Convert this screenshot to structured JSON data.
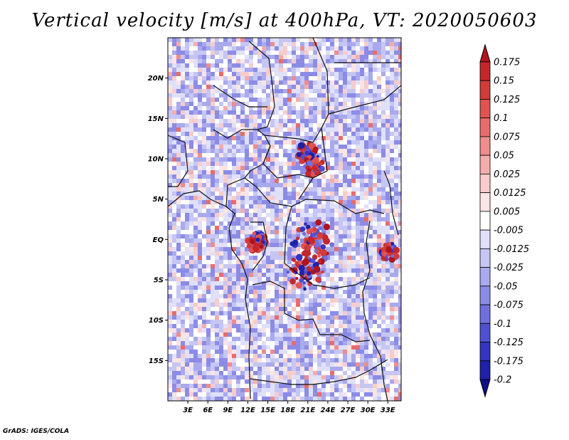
{
  "title": "Vertical velocity [m/s] at 400hPa, VT: 2020050603",
  "footer": "GrADS: IGES/COLA",
  "map": {
    "lat_labels": [
      "20N",
      "15N",
      "10N",
      "5N",
      "EQ",
      "5S",
      "10S",
      "15S"
    ],
    "lat_values": [
      20,
      15,
      10,
      5,
      0,
      -5,
      -10,
      -15
    ],
    "lon_labels": [
      "3E",
      "6E",
      "9E",
      "12E",
      "15E",
      "18E",
      "21E",
      "24E",
      "27E",
      "30E",
      "33E"
    ],
    "lon_values": [
      3,
      6,
      9,
      12,
      15,
      18,
      21,
      24,
      27,
      30,
      33
    ],
    "lat_range": [
      -20,
      25
    ],
    "lon_range": [
      0,
      35
    ]
  },
  "colorbar": {
    "levels": [
      "0.175",
      "0.15",
      "0.125",
      "0.1",
      "0.075",
      "0.05",
      "0.025",
      "0.0125",
      "0.005",
      "-0.005",
      "-0.0125",
      "-0.025",
      "-0.05",
      "-0.075",
      "-0.1",
      "-0.125",
      "-0.175",
      "-0.2"
    ],
    "colors": [
      "#b0141a",
      "#c4272b",
      "#d13b3b",
      "#e05353",
      "#e86c6c",
      "#ef8c8c",
      "#f4adad",
      "#f8cccc",
      "#fbe4e4",
      "#ffffff",
      "#e0e0fa",
      "#c6c6f4",
      "#a9a9ee",
      "#8c8ce6",
      "#6f6fdd",
      "#5050d2",
      "#3434c0",
      "#2020a8",
      "#10108c"
    ]
  }
}
